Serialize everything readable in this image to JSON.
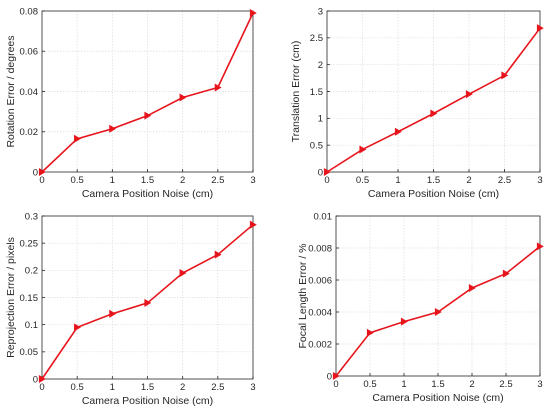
{
  "chart_data": [
    {
      "type": "line",
      "xlabel": "Camera Position Noise (cm)",
      "ylabel": "Rotation Error / degrees",
      "x": [
        0,
        0.5,
        1,
        1.5,
        2,
        2.5,
        3
      ],
      "xticks": [
        "0",
        "0.5",
        "1",
        "1.5",
        "2",
        "2.5",
        "3"
      ],
      "xlim": [
        0,
        3
      ],
      "ylim": [
        0,
        0.08
      ],
      "yticks": [
        0,
        0.02,
        0.04,
        0.06,
        0.08
      ],
      "ytick_labels": [
        "0",
        "0.02",
        "0.04",
        "0.06",
        "0.08"
      ],
      "grid": true,
      "series": [
        {
          "values": [
            0,
            0.0165,
            0.0215,
            0.028,
            0.037,
            0.042,
            0.079
          ],
          "color": "#e8141c",
          "marker": "triangle-right"
        }
      ]
    },
    {
      "type": "line",
      "xlabel": "Camera Position Noise (cm)",
      "ylabel": "Translation Error (cm)",
      "x": [
        0,
        0.5,
        1,
        1.5,
        2,
        2.5,
        3
      ],
      "xticks": [
        "0",
        "0.5",
        "1",
        "1.5",
        "2",
        "2.5",
        "3"
      ],
      "xlim": [
        0,
        3
      ],
      "ylim": [
        0,
        3
      ],
      "yticks": [
        0,
        0.5,
        1,
        1.5,
        2,
        2.5,
        3
      ],
      "ytick_labels": [
        "0",
        "0.5",
        "1",
        "1.5",
        "2",
        "2.5",
        "3"
      ],
      "grid": true,
      "series": [
        {
          "values": [
            0,
            0.42,
            0.75,
            1.09,
            1.45,
            1.8,
            2.68
          ],
          "color": "#e8141c",
          "marker": "triangle-right"
        }
      ]
    },
    {
      "type": "line",
      "xlabel": "Camera Position Noise (cm)",
      "ylabel": "Reprojection Error / pixels",
      "x": [
        0,
        0.5,
        1,
        1.5,
        2,
        2.5,
        3
      ],
      "xticks": [
        "0",
        "0.5",
        "1",
        "1.5",
        "2",
        "2.5",
        "3"
      ],
      "xlim": [
        0,
        3
      ],
      "ylim": [
        0,
        0.3
      ],
      "yticks": [
        0,
        0.05,
        0.1,
        0.15,
        0.2,
        0.25,
        0.3
      ],
      "ytick_labels": [
        "0",
        "0.05",
        "0.1",
        "0.15",
        "0.2",
        "0.25",
        "0.3"
      ],
      "grid": true,
      "series": [
        {
          "values": [
            0,
            0.095,
            0.12,
            0.14,
            0.195,
            0.229,
            0.284
          ],
          "color": "#e8141c",
          "marker": "triangle-right"
        }
      ]
    },
    {
      "type": "line",
      "xlabel": "Camera Position Noise (cm)",
      "ylabel": "Focal Length Error / %",
      "x": [
        0,
        0.5,
        1,
        1.5,
        2,
        2.5,
        3
      ],
      "xticks": [
        "0",
        "0.5",
        "1",
        "1.5",
        "2",
        "2.5",
        "3"
      ],
      "xlim": [
        0,
        3
      ],
      "ylim": [
        0,
        0.01
      ],
      "yticks": [
        0,
        0.002,
        0.004,
        0.006,
        0.008,
        0.01
      ],
      "ytick_labels": [
        "0",
        "0.002",
        "0.004",
        "0.006",
        "0.008",
        "0.01"
      ],
      "grid": true,
      "series": [
        {
          "values": [
            0,
            0.0027,
            0.0034,
            0.004,
            0.0055,
            0.0064,
            0.0081
          ],
          "color": "#e8141c",
          "marker": "triangle-right"
        }
      ]
    }
  ]
}
